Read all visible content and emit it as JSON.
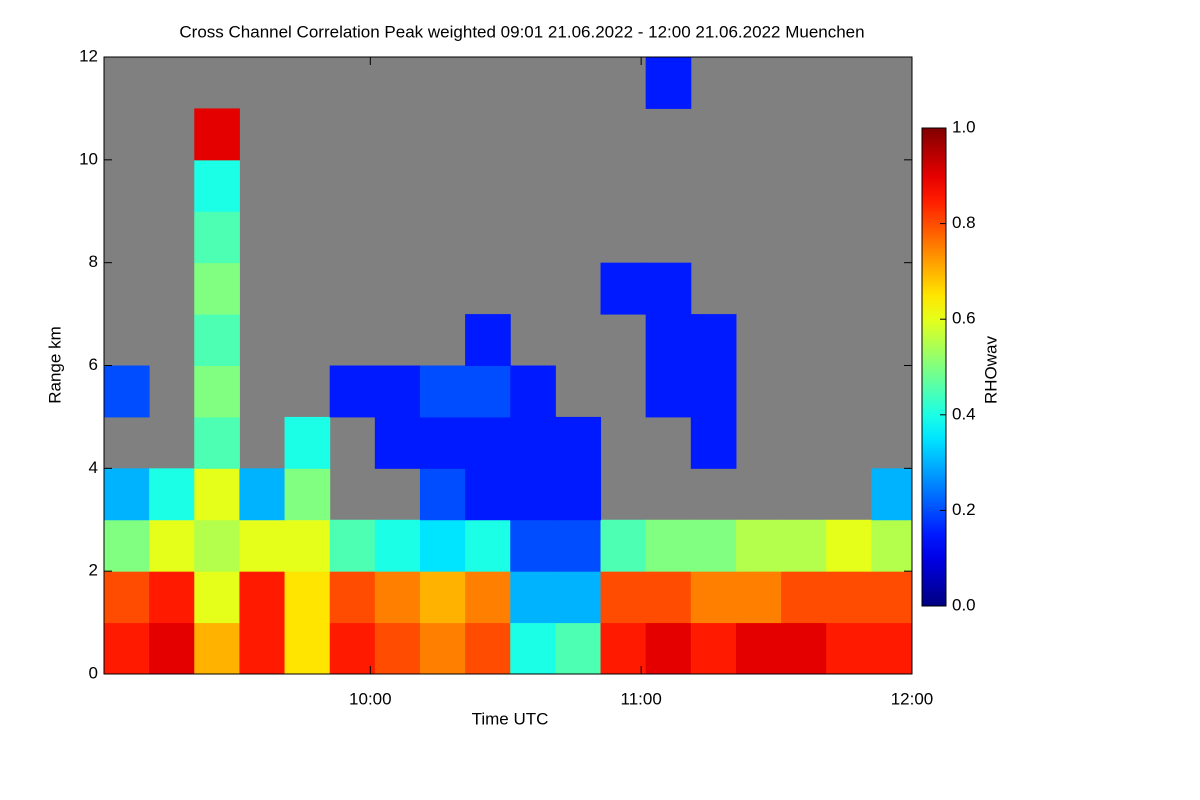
{
  "chart_data": {
    "type": "heatmap",
    "title": "Cross Channel Correlation Peak weighted   09:01 21.06.2022 - 12:00 21.06.2022 Muenchen",
    "x_label": "Time UTC",
    "y_label": "Range km",
    "colorbar_label": "RHOwav",
    "colormap": "jet",
    "missing_color": "#808080",
    "xbins": [
      541,
      551,
      561,
      571,
      581,
      591,
      601,
      611,
      621,
      631,
      641,
      651,
      661,
      671,
      681,
      691,
      701,
      711,
      720
    ],
    "ybins": [
      0,
      1,
      2,
      3,
      4,
      5,
      6,
      7,
      8,
      9,
      10,
      11,
      12
    ],
    "values": [
      [
        0.85,
        0.9,
        0.7,
        0.85,
        0.65,
        0.85,
        0.8,
        0.75,
        0.8,
        0.4,
        0.45,
        0.85,
        0.9,
        0.85,
        0.9,
        0.9,
        0.85,
        0.85
      ],
      [
        0.8,
        0.85,
        0.6,
        0.85,
        0.65,
        0.8,
        0.75,
        0.7,
        0.75,
        0.3,
        0.3,
        0.8,
        0.8,
        0.75,
        0.75,
        0.8,
        0.8,
        0.8
      ],
      [
        0.5,
        0.6,
        0.55,
        0.6,
        0.6,
        0.45,
        0.4,
        0.35,
        0.4,
        0.2,
        0.2,
        0.45,
        0.5,
        0.5,
        0.55,
        0.55,
        0.6,
        0.55
      ],
      [
        0.3,
        0.4,
        0.6,
        0.3,
        0.5,
        null,
        null,
        0.2,
        0.15,
        0.15,
        0.15,
        null,
        null,
        null,
        null,
        null,
        null,
        0.3
      ],
      [
        null,
        null,
        0.45,
        null,
        0.4,
        null,
        0.15,
        0.15,
        0.15,
        0.15,
        0.15,
        null,
        null,
        0.15,
        null,
        null,
        null,
        null
      ],
      [
        0.2,
        null,
        0.5,
        null,
        null,
        0.15,
        0.15,
        0.2,
        0.2,
        0.15,
        null,
        null,
        0.15,
        0.15,
        null,
        null,
        null,
        null
      ],
      [
        null,
        null,
        0.45,
        null,
        null,
        null,
        null,
        null,
        0.15,
        null,
        null,
        null,
        0.15,
        0.15,
        null,
        null,
        null,
        null
      ],
      [
        null,
        null,
        0.5,
        null,
        null,
        null,
        null,
        null,
        null,
        null,
        null,
        0.15,
        0.15,
        null,
        null,
        null,
        null,
        null
      ],
      [
        null,
        null,
        0.45,
        null,
        null,
        null,
        null,
        null,
        null,
        null,
        null,
        null,
        null,
        null,
        null,
        null,
        null,
        null
      ],
      [
        null,
        null,
        0.4,
        null,
        null,
        null,
        null,
        null,
        null,
        null,
        null,
        null,
        null,
        null,
        null,
        null,
        null,
        null
      ],
      [
        null,
        null,
        0.9,
        null,
        null,
        null,
        null,
        null,
        null,
        null,
        null,
        null,
        null,
        null,
        null,
        null,
        null,
        null
      ],
      [
        null,
        null,
        null,
        null,
        null,
        null,
        null,
        null,
        null,
        null,
        null,
        null,
        0.15,
        null,
        null,
        null,
        null,
        null
      ]
    ],
    "xlim": [
      541,
      720
    ],
    "xticks": [
      {
        "value": 600,
        "label": "10:00"
      },
      {
        "value": 660,
        "label": "11:00"
      },
      {
        "value": 720,
        "label": "12:00"
      }
    ],
    "ylim": [
      0,
      12
    ],
    "yticks": [
      0,
      2,
      4,
      6,
      8,
      10,
      12
    ],
    "clim": [
      0,
      1
    ],
    "cticks": [
      {
        "value": 0,
        "label": "0.0"
      },
      0.2,
      0.4,
      0.6,
      0.8,
      {
        "value": 1,
        "label": "1.0"
      }
    ]
  }
}
